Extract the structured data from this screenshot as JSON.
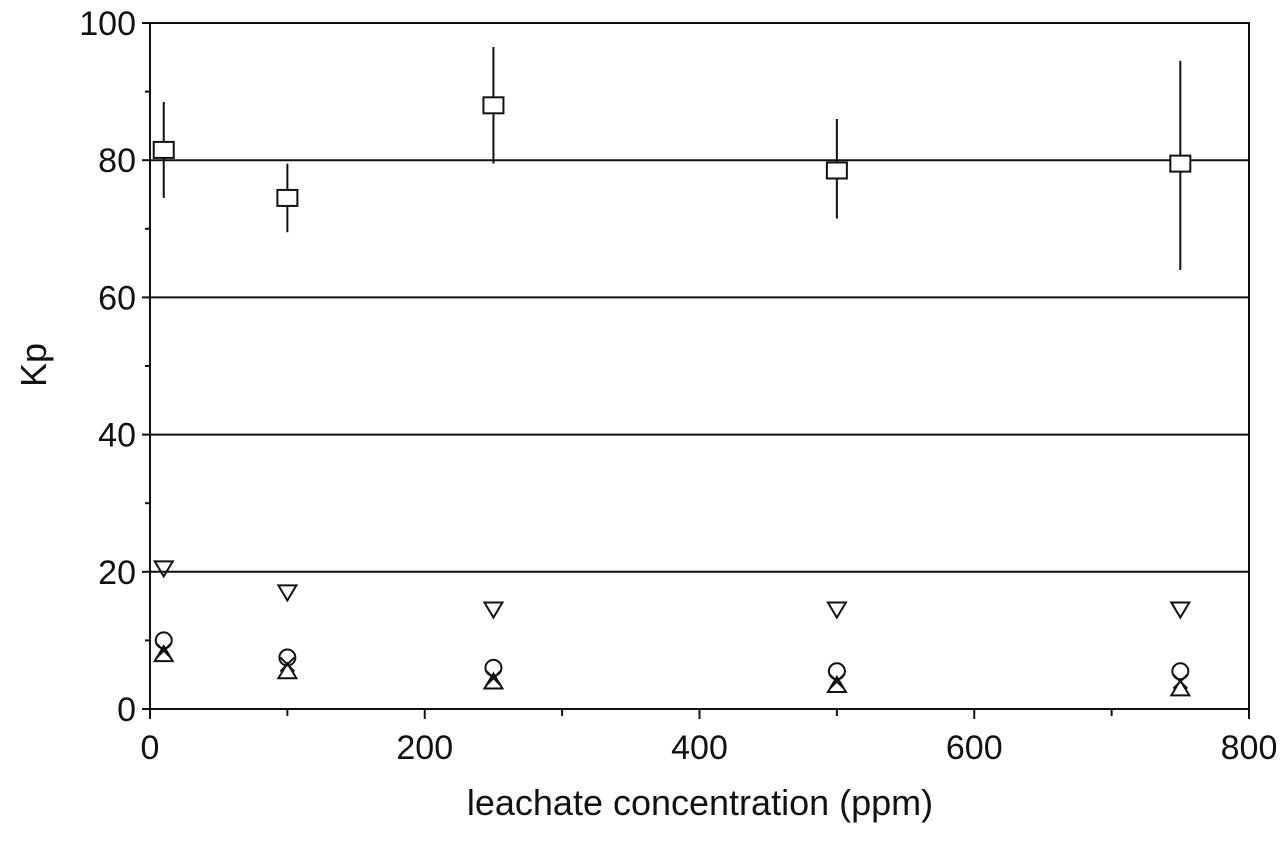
{
  "chart_data": {
    "type": "scatter",
    "title": "",
    "xlabel": "leachate concentration (ppm)",
    "ylabel": "Kp",
    "xlim": [
      0,
      800
    ],
    "ylim": [
      0,
      100
    ],
    "x_ticks": [
      0,
      200,
      400,
      600,
      800
    ],
    "y_ticks": [
      0,
      20,
      40,
      60,
      80,
      100
    ],
    "x_tick_labels": [
      "0",
      "200",
      "400",
      "600",
      "800"
    ],
    "y_tick_labels": [
      "0",
      "20",
      "40",
      "60",
      "80",
      "100"
    ],
    "horizontal_gridlines": [
      20,
      40,
      60,
      80
    ],
    "legend": "none",
    "series": [
      {
        "marker": "square",
        "x": [
          10,
          100,
          250,
          500,
          750
        ],
        "y": [
          81.5,
          74.5,
          88,
          78.5,
          79.5
        ],
        "err_low": [
          74.5,
          69.5,
          79.5,
          71.5,
          64
        ],
        "err_high": [
          88.5,
          79.5,
          96.5,
          86,
          94.5
        ]
      },
      {
        "marker": "triangle-down",
        "x": [
          10,
          100,
          250,
          500,
          750
        ],
        "y": [
          20.5,
          17,
          14.5,
          14.5,
          14.5
        ]
      },
      {
        "marker": "circle",
        "x": [
          10,
          100,
          250,
          500,
          750
        ],
        "y": [
          10,
          7.5,
          6,
          5.5,
          5.5
        ]
      },
      {
        "marker": "x",
        "x": [
          10,
          100,
          250,
          500,
          750
        ],
        "y": [
          8.5,
          6.5,
          4.5,
          4,
          4
        ]
      },
      {
        "marker": "triangle-up",
        "x": [
          10,
          100,
          250,
          500,
          750
        ],
        "y": [
          8,
          5.5,
          4,
          3.5,
          3
        ]
      }
    ]
  }
}
